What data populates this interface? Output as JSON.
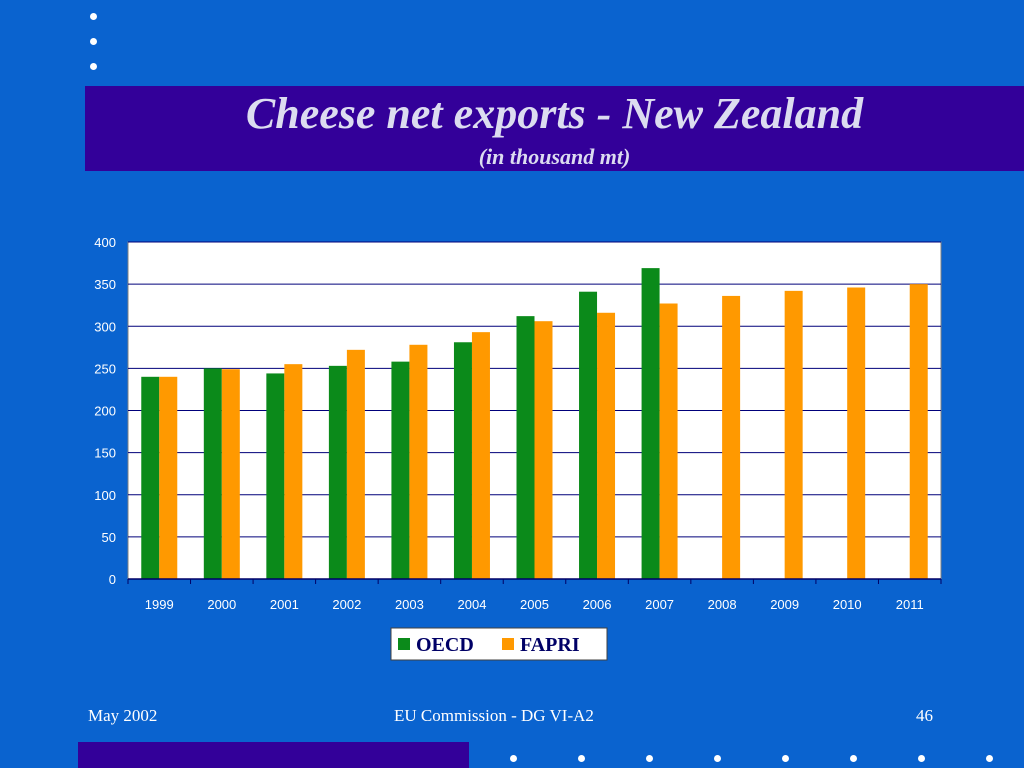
{
  "slide": {
    "title": "Cheese net exports - New Zealand",
    "subtitle": "(in thousand mt)",
    "footer_left": "May 2002",
    "footer_center": "EU Commission - DG VI-A2",
    "page_number": "46"
  },
  "colors": {
    "background": "#0a63cf",
    "title_band": "#330099",
    "oecd": "#0b8a1a",
    "fapri": "#ff9900",
    "grid": "#00007a"
  },
  "chart_data": {
    "type": "bar",
    "categories": [
      "1999",
      "2000",
      "2001",
      "2002",
      "2003",
      "2004",
      "2005",
      "2006",
      "2007",
      "2008",
      "2009",
      "2010",
      "2011"
    ],
    "series": [
      {
        "name": "OECD",
        "values": [
          240,
          250,
          244,
          253,
          258,
          281,
          312,
          341,
          369,
          null,
          null,
          null,
          null
        ]
      },
      {
        "name": "FAPRI",
        "values": [
          240,
          249,
          255,
          272,
          278,
          293,
          306,
          316,
          327,
          336,
          342,
          346,
          350
        ]
      }
    ],
    "ylim": [
      0,
      400
    ],
    "yticks": [
      0,
      50,
      100,
      150,
      200,
      250,
      300,
      350,
      400
    ],
    "grid": true,
    "legend": "bottom-center"
  }
}
